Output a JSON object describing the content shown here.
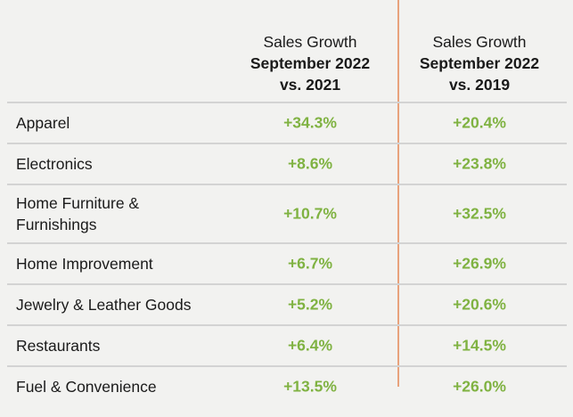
{
  "header": {
    "col1": {
      "line1": "Sales Growth",
      "line2": "September 2022",
      "line3": "vs. 2021"
    },
    "col2": {
      "line1": "Sales Growth",
      "line2": "September 2022",
      "line3": "vs. 2019"
    }
  },
  "rows": [
    {
      "label": "Apparel",
      "v2021": "+34.3%",
      "v2019": "+20.4%"
    },
    {
      "label": "Electronics",
      "v2021": "+8.6%",
      "v2019": "+23.8%"
    },
    {
      "label_line1": "Home Furniture &",
      "label_line2": "Furnishings",
      "v2021": "+10.7%",
      "v2019": "+32.5%"
    },
    {
      "label": "Home Improvement",
      "v2021": "+6.7%",
      "v2019": "+26.9%"
    },
    {
      "label": "Jewelry & Leather Goods",
      "v2021": "+5.2%",
      "v2019": "+20.6%"
    },
    {
      "label": "Restaurants",
      "v2021": "+6.4%",
      "v2019": "+14.5%"
    },
    {
      "label": "Fuel & Convenience",
      "v2021": "+13.5%",
      "v2019": "+26.0%"
    }
  ],
  "colors": {
    "positive_value": "#7fb241",
    "divider": "#e8a27c",
    "row_border": "#d3d3d3",
    "background": "#f2f2f0"
  }
}
